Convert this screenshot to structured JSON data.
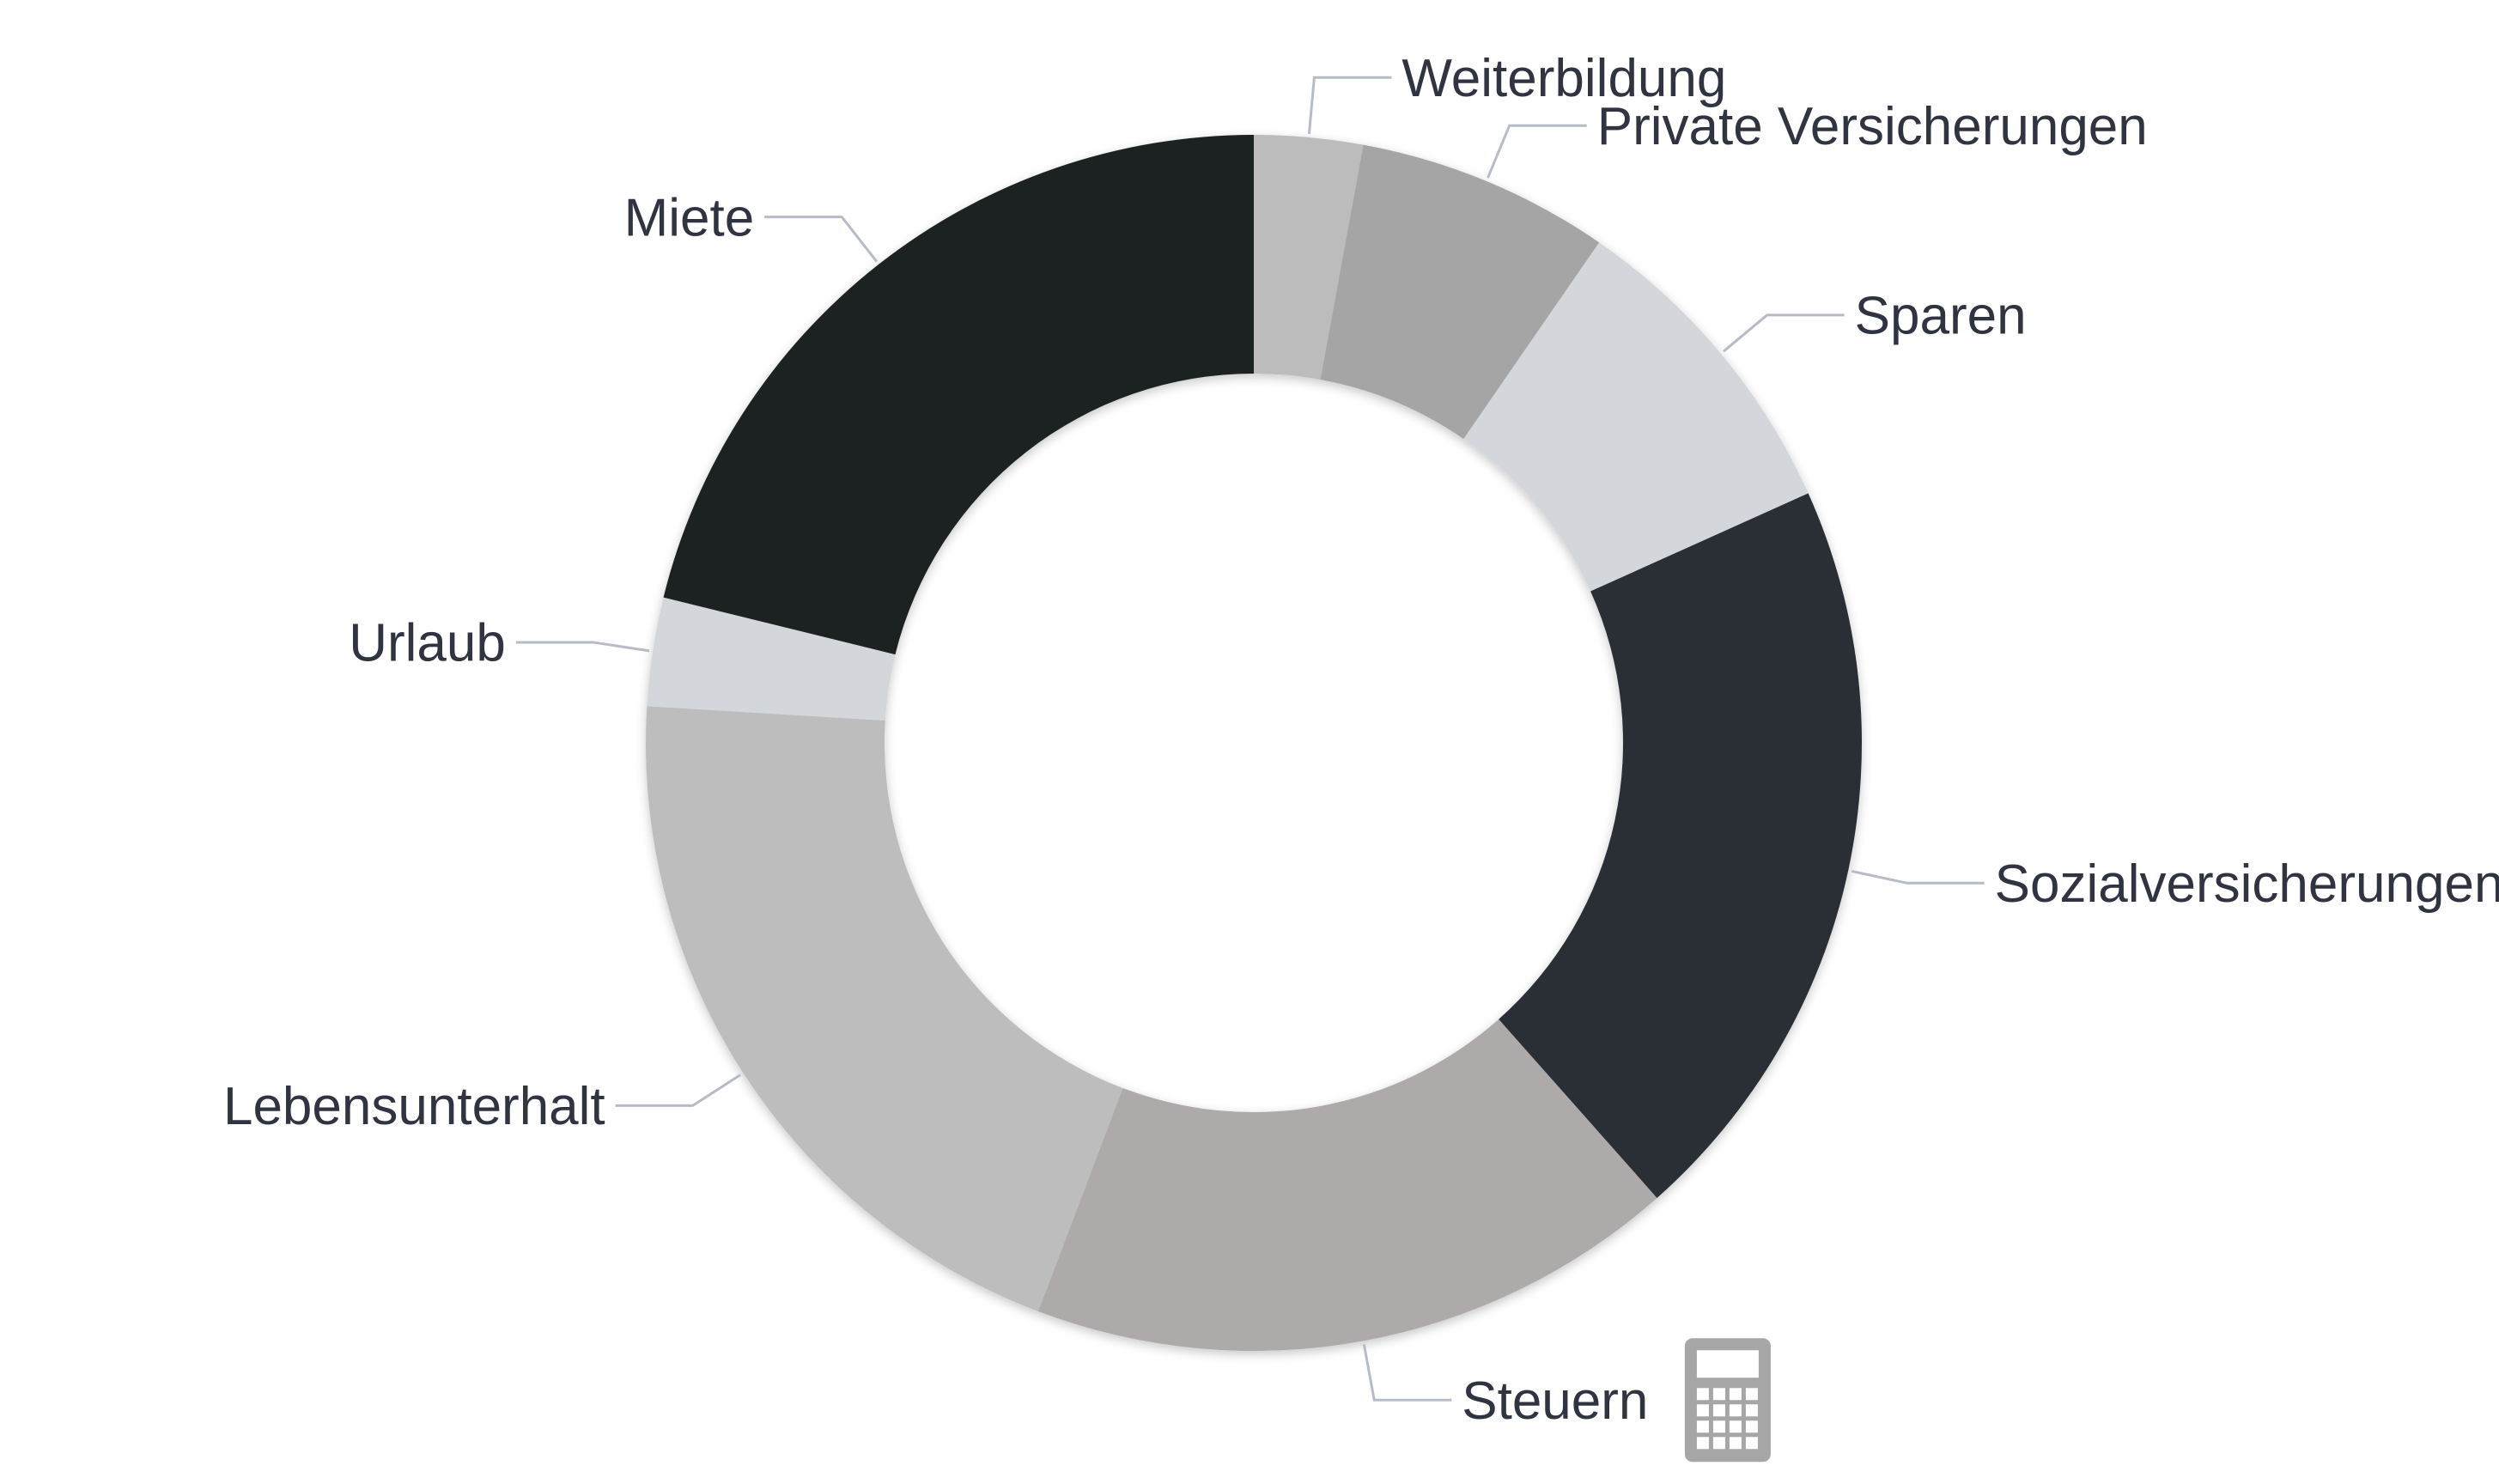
{
  "chart_data": {
    "type": "pie",
    "variant": "donut",
    "title": "",
    "categories": [
      "Weiterbildung",
      "Private Versicherungen",
      "Sparen",
      "Sozialversicherungen",
      "Steuern",
      "Lebensunterhalt",
      "Urlaub",
      "Miete"
    ],
    "values": [
      3,
      7,
      9,
      21,
      18,
      21,
      3,
      22
    ],
    "colors": [
      "#bcbcbc",
      "#a5a5a5",
      "#d3d7dc",
      "#292e36",
      "#aeaaaa",
      "#bdbdbd",
      "#d3d7dc",
      "#1f2024"
    ],
    "label_color": "#2f3440",
    "leader_line_color": "#b6bcc6",
    "legend": "none",
    "icons": [
      {
        "name": "calculator-icon",
        "near_label": "Steuern",
        "color": "#a6a6a6"
      }
    ]
  }
}
